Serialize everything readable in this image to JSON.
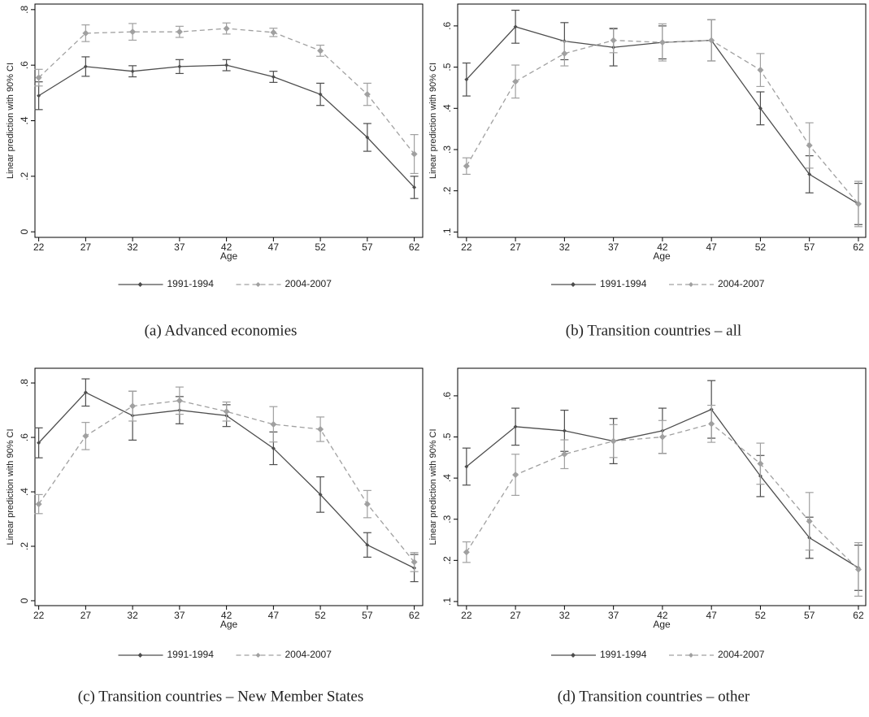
{
  "chart_data": [
    {
      "type": "line",
      "caption": "(a) Advanced economies",
      "ylabel": "Linear prediction with 90% CI",
      "xlabel": "Age",
      "x": [
        22,
        27,
        32,
        37,
        42,
        47,
        52,
        57,
        62
      ],
      "xlim": [
        21.6,
        62.9
      ],
      "xticks": [
        22,
        27,
        32,
        37,
        42,
        47,
        52,
        57,
        62
      ],
      "ylim": [
        -0.02,
        0.82
      ],
      "yticks": [
        0,
        {
          "value": 0.2,
          "label": ".2"
        },
        {
          "value": 0.4,
          "label": ".4"
        },
        {
          "value": 0.6,
          "label": ".6"
        },
        {
          "value": 0.8,
          "label": ".8"
        }
      ],
      "series": [
        {
          "name": "1991-1994",
          "color": "#4d4d4d",
          "dashed": false,
          "values": [
            0.49,
            0.595,
            0.578,
            0.595,
            0.6,
            0.558,
            0.495,
            0.34,
            0.16
          ],
          "errors": [
            0.05,
            0.035,
            0.02,
            0.025,
            0.02,
            0.02,
            0.04,
            0.05,
            0.04
          ]
        },
        {
          "name": "2004-2007",
          "color": "#a0a0a0",
          "dashed": true,
          "values": [
            0.555,
            0.715,
            0.72,
            0.72,
            0.732,
            0.718,
            0.652,
            0.495,
            0.28
          ],
          "errors": [
            0.03,
            0.03,
            0.03,
            0.02,
            0.02,
            0.015,
            0.02,
            0.04,
            0.07
          ]
        }
      ]
    },
    {
      "type": "line",
      "caption": "(b) Transition countries – all",
      "ylabel": "Linear prediction with 90% CI",
      "xlabel": "Age",
      "x": [
        22,
        27,
        32,
        37,
        42,
        47,
        52,
        57,
        62
      ],
      "xlim": [
        21.1,
        62.75
      ],
      "xticks": [
        22,
        27,
        32,
        37,
        42,
        47,
        52,
        57,
        62
      ],
      "ylim": [
        0.087,
        0.653
      ],
      "yticks": [
        {
          "value": 0.1,
          "label": ".1"
        },
        {
          "value": 0.2,
          "label": ".2"
        },
        {
          "value": 0.3,
          "label": ".3"
        },
        {
          "value": 0.4,
          "label": ".4"
        },
        {
          "value": 0.5,
          "label": ".5"
        },
        {
          "value": 0.6,
          "label": ".6"
        }
      ],
      "series": [
        {
          "name": "1991-1994",
          "color": "#4d4d4d",
          "dashed": false,
          "values": [
            0.47,
            0.598,
            0.563,
            0.548,
            0.56,
            0.565,
            0.4,
            0.24,
            0.168
          ],
          "errors": [
            0.04,
            0.04,
            0.045,
            0.045,
            0.04,
            0.05,
            0.04,
            0.045,
            0.05
          ]
        },
        {
          "name": "2004-2007",
          "color": "#a0a0a0",
          "dashed": true,
          "values": [
            0.26,
            0.465,
            0.533,
            0.565,
            0.56,
            0.565,
            0.493,
            0.31,
            0.168
          ],
          "errors": [
            0.02,
            0.04,
            0.03,
            0.03,
            0.045,
            0.05,
            0.04,
            0.055,
            0.055
          ]
        }
      ]
    },
    {
      "type": "line",
      "caption": "(c) Transition countries – New Member States",
      "ylabel": "Linear prediction with 90% CI",
      "xlabel": "Age",
      "x": [
        22,
        27,
        32,
        37,
        42,
        47,
        52,
        57,
        62
      ],
      "xlim": [
        21.6,
        62.9
      ],
      "xticks": [
        22,
        27,
        32,
        37,
        42,
        47,
        52,
        57,
        62
      ],
      "ylim": [
        -0.018,
        0.854
      ],
      "yticks": [
        0,
        {
          "value": 0.2,
          "label": ".2"
        },
        {
          "value": 0.4,
          "label": ".4"
        },
        {
          "value": 0.6,
          "label": ".6"
        },
        {
          "value": 0.8,
          "label": ".8"
        }
      ],
      "series": [
        {
          "name": "1991-1994",
          "color": "#4d4d4d",
          "dashed": false,
          "values": [
            0.58,
            0.765,
            0.68,
            0.7,
            0.68,
            0.56,
            0.39,
            0.205,
            0.12
          ],
          "errors": [
            0.055,
            0.05,
            0.09,
            0.05,
            0.04,
            0.06,
            0.065,
            0.045,
            0.05
          ]
        },
        {
          "name": "2004-2007",
          "color": "#a0a0a0",
          "dashed": true,
          "values": [
            0.355,
            0.605,
            0.715,
            0.735,
            0.695,
            0.648,
            0.63,
            0.355,
            0.142
          ],
          "errors": [
            0.035,
            0.05,
            0.055,
            0.05,
            0.035,
            0.065,
            0.045,
            0.05,
            0.035
          ]
        }
      ]
    },
    {
      "type": "line",
      "caption": "(d) Transition countries – other",
      "ylabel": "Linear prediction with 90% CI",
      "xlabel": "Age",
      "x": [
        22,
        27,
        32,
        37,
        42,
        47,
        52,
        57,
        62
      ],
      "xlim": [
        21.1,
        62.75
      ],
      "xticks": [
        22,
        27,
        32,
        37,
        42,
        47,
        52,
        57,
        62
      ],
      "ylim": [
        0.09,
        0.667
      ],
      "yticks": [
        {
          "value": 0.1,
          "label": ".1"
        },
        {
          "value": 0.2,
          "label": ".2"
        },
        {
          "value": 0.3,
          "label": ".3"
        },
        {
          "value": 0.4,
          "label": ".4"
        },
        {
          "value": 0.5,
          "label": ".5"
        },
        {
          "value": 0.6,
          "label": ".6"
        }
      ],
      "series": [
        {
          "name": "1991-1994",
          "color": "#4d4d4d",
          "dashed": false,
          "values": [
            0.428,
            0.525,
            0.515,
            0.49,
            0.515,
            0.567,
            0.405,
            0.255,
            0.182
          ],
          "errors": [
            0.045,
            0.045,
            0.05,
            0.055,
            0.055,
            0.07,
            0.05,
            0.05,
            0.055
          ]
        },
        {
          "name": "2004-2007",
          "color": "#a0a0a0",
          "dashed": true,
          "values": [
            0.22,
            0.408,
            0.458,
            0.49,
            0.5,
            0.532,
            0.435,
            0.295,
            0.178
          ],
          "errors": [
            0.025,
            0.05,
            0.035,
            0.04,
            0.04,
            0.045,
            0.05,
            0.07,
            0.065
          ]
        }
      ]
    }
  ]
}
